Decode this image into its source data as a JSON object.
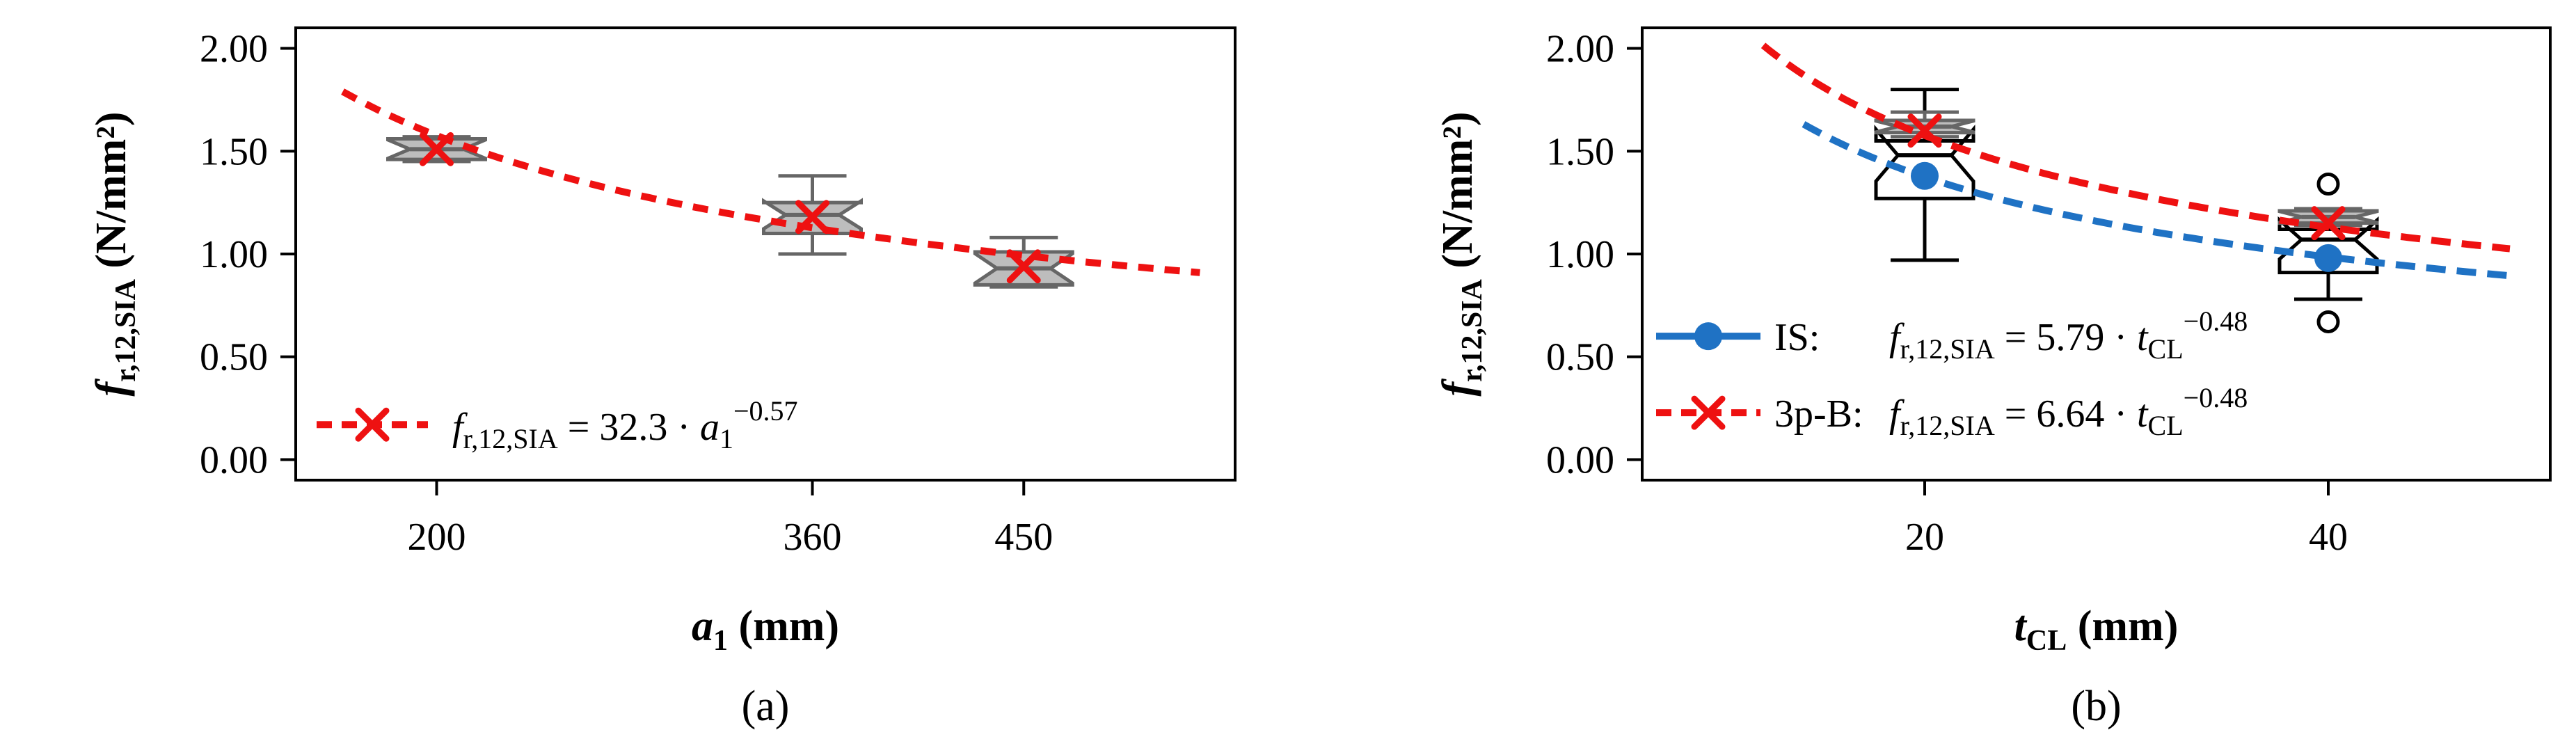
{
  "chart_data": [
    {
      "type": "box",
      "panel_label": "(a)",
      "xlabel": {
        "var": "a",
        "sub": "1",
        "unit": "(mm)"
      },
      "ylabel": {
        "var": "f",
        "sub": "r,12,SIA",
        "unit": "(N/mm²)"
      },
      "yticks": [
        "0.00",
        "0.50",
        "1.00",
        "1.50",
        "2.00"
      ],
      "ylim": [
        -0.1,
        2.1
      ],
      "xlim": [
        140,
        540
      ],
      "xticks": [
        "200",
        "360",
        "450"
      ],
      "boxes": [
        {
          "x": 200,
          "whisker_low": 1.45,
          "q1": 1.46,
          "median": 1.51,
          "q3": 1.56,
          "whisker_high": 1.57,
          "mean": 1.51
        },
        {
          "x": 360,
          "whisker_low": 1.0,
          "q1": 1.1,
          "median": 1.19,
          "q3": 1.25,
          "whisker_high": 1.38,
          "mean": 1.18
        },
        {
          "x": 450,
          "whisker_low": 0.84,
          "q1": 0.85,
          "median": 0.93,
          "q3": 1.01,
          "whisker_high": 1.08,
          "mean": 0.94
        }
      ],
      "fit": {
        "coef": 32.3,
        "exp": -0.57,
        "x_range": [
          160,
          525
        ],
        "color": "#ee1111"
      },
      "legend": [
        {
          "marker": "x",
          "color": "#ee1111",
          "text_lhs_var": "f",
          "text_lhs_sub": "r,12,SIA",
          "text_eq": " = 32.3 · ",
          "text_var": "a",
          "text_var_sub": "1",
          "text_exp": "−0.57"
        }
      ],
      "legend_position": "bottom-left",
      "grid": false
    },
    {
      "type": "box",
      "panel_label": "(b)",
      "xlabel": {
        "var": "t",
        "sub": "CL",
        "unit": "(mm)"
      },
      "ylabel": {
        "var": "f",
        "sub": "r,12,SIA",
        "unit": "(N/mm²)"
      },
      "yticks": [
        "0.00",
        "0.50",
        "1.00",
        "1.50",
        "2.00"
      ],
      "ylim": [
        -0.1,
        2.1
      ],
      "xlim": [
        6,
        51
      ],
      "xticks": [
        "20",
        "40"
      ],
      "series": [
        {
          "name": "IS",
          "color": "#1f72c4",
          "marker": "circle",
          "boxes": [
            {
              "x": 20,
              "whisker_low": 0.97,
              "q1": 1.27,
              "median": 1.48,
              "q3": 1.55,
              "whisker_high": 1.8,
              "mean": 1.38
            },
            {
              "x": 40,
              "whisker_low": 0.78,
              "q1": 0.91,
              "median": 1.07,
              "q3": 1.12,
              "whisker_high": 1.15,
              "mean": 0.98,
              "outliers": [
                0.67,
                1.34
              ]
            }
          ],
          "fit": {
            "coef": 5.79,
            "exp": -0.48,
            "x_range": [
              14,
              49
            ]
          }
        },
        {
          "name": "3p-B",
          "color": "#ee1111",
          "marker": "x",
          "boxes": [
            {
              "x": 20,
              "whisker_low": 1.57,
              "q1": 1.59,
              "median": 1.62,
              "q3": 1.65,
              "whisker_high": 1.69,
              "mean": 1.6
            },
            {
              "x": 40,
              "whisker_low": 1.14,
              "q1": 1.15,
              "median": 1.18,
              "q3": 1.21,
              "whisker_high": 1.22,
              "mean": 1.15
            }
          ],
          "fit": {
            "coef": 6.64,
            "exp": -0.48,
            "x_range": [
              12,
              49
            ]
          }
        }
      ],
      "legend": [
        {
          "label": "IS:",
          "marker": "circle",
          "color": "#1f72c4",
          "text_lhs_var": "f",
          "text_lhs_sub": "r,12,SIA",
          "text_eq": " = 5.79 · ",
          "text_var": "t",
          "text_var_sub": "CL",
          "text_exp": "−0.48"
        },
        {
          "label": "3p-B:",
          "marker": "x",
          "color": "#ee1111",
          "text_lhs_var": "f",
          "text_lhs_sub": "r,12,SIA",
          "text_eq": " = 6.64 · ",
          "text_var": "t",
          "text_var_sub": "CL",
          "text_exp": "−0.48"
        }
      ],
      "legend_position": "bottom-left",
      "grid": false
    }
  ]
}
